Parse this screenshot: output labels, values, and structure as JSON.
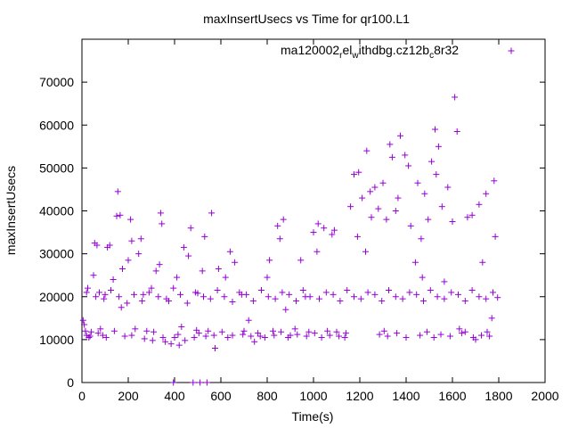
{
  "chart_data": {
    "type": "scatter",
    "title": "maxInsertUsecs vs Time for qr100.L1",
    "xlabel": "Time(s)",
    "ylabel": "maxInsertUsecs",
    "xlim": [
      0,
      2000
    ],
    "ylim": [
      0,
      80000
    ],
    "x_ticks": [
      0,
      200,
      400,
      600,
      800,
      1000,
      1200,
      1400,
      1600,
      1800,
      2000
    ],
    "y_ticks": [
      0,
      10000,
      20000,
      30000,
      40000,
      50000,
      60000,
      70000
    ],
    "grid": false,
    "legend_position": "top-right",
    "marker": "+",
    "series": [
      {
        "name": "ma120002_rel_withdbg.cz12b_c8r32",
        "legend_parts": {
          "a": "ma120002",
          "b": "r",
          "c": "el",
          "d": "w",
          "e": "ithdbg.cz12b",
          "f": "c",
          "g": "8r32"
        },
        "color": "#9400d3",
        "points": [
          [
            5,
            14500
          ],
          [
            10,
            13500
          ],
          [
            15,
            12000
          ],
          [
            20,
            11000
          ],
          [
            25,
            22000
          ],
          [
            30,
            10500
          ],
          [
            40,
            11800
          ],
          [
            50,
            25000
          ],
          [
            55,
            32500
          ],
          [
            65,
            32000
          ],
          [
            75,
            21000
          ],
          [
            80,
            12500
          ],
          [
            90,
            11000
          ],
          [
            100,
            20500
          ],
          [
            110,
            31500
          ],
          [
            120,
            32000
          ],
          [
            135,
            24000
          ],
          [
            150,
            38800
          ],
          [
            155,
            44500
          ],
          [
            165,
            39000
          ],
          [
            170,
            17500
          ],
          [
            175,
            26500
          ],
          [
            185,
            10800
          ],
          [
            200,
            28500
          ],
          [
            210,
            38000
          ],
          [
            215,
            33000
          ],
          [
            230,
            12500
          ],
          [
            245,
            30000
          ],
          [
            255,
            33500
          ],
          [
            265,
            20500
          ],
          [
            280,
            12000
          ],
          [
            300,
            22000
          ],
          [
            305,
            9800
          ],
          [
            320,
            26000
          ],
          [
            335,
            27500
          ],
          [
            340,
            39500
          ],
          [
            345,
            37000
          ],
          [
            360,
            9500
          ],
          [
            375,
            19000
          ],
          [
            385,
            9000
          ],
          [
            395,
            0
          ],
          [
            400,
            10500
          ],
          [
            410,
            24500
          ],
          [
            420,
            8700
          ],
          [
            430,
            13000
          ],
          [
            440,
            31500
          ],
          [
            460,
            29500
          ],
          [
            470,
            36000
          ],
          [
            480,
            0
          ],
          [
            485,
            10500
          ],
          [
            495,
            12200
          ],
          [
            500,
            20800
          ],
          [
            510,
            0
          ],
          [
            520,
            26000
          ],
          [
            530,
            34000
          ],
          [
            540,
            0
          ],
          [
            545,
            12000
          ],
          [
            560,
            39500
          ],
          [
            575,
            8000
          ],
          [
            590,
            26500
          ],
          [
            620,
            24500
          ],
          [
            640,
            30500
          ],
          [
            650,
            11000
          ],
          [
            660,
            28000
          ],
          [
            690,
            20500
          ],
          [
            700,
            12000
          ],
          [
            720,
            14500
          ],
          [
            745,
            9500
          ],
          [
            770,
            10800
          ],
          [
            800,
            24500
          ],
          [
            810,
            28500
          ],
          [
            825,
            12000
          ],
          [
            845,
            36500
          ],
          [
            855,
            33500
          ],
          [
            870,
            38000
          ],
          [
            880,
            17000
          ],
          [
            900,
            11000
          ],
          [
            920,
            12500
          ],
          [
            945,
            28500
          ],
          [
            965,
            20000
          ],
          [
            980,
            11800
          ],
          [
            1000,
            35000
          ],
          [
            1015,
            30500
          ],
          [
            1020,
            37000
          ],
          [
            1045,
            36000
          ],
          [
            1060,
            12000
          ],
          [
            1080,
            34500
          ],
          [
            1090,
            35500
          ],
          [
            1110,
            10800
          ],
          [
            1140,
            11500
          ],
          [
            1160,
            41000
          ],
          [
            1175,
            48500
          ],
          [
            1190,
            34000
          ],
          [
            1195,
            49000
          ],
          [
            1210,
            43000
          ],
          [
            1225,
            30500
          ],
          [
            1230,
            54000
          ],
          [
            1245,
            44500
          ],
          [
            1250,
            38500
          ],
          [
            1265,
            45500
          ],
          [
            1280,
            40500
          ],
          [
            1300,
            46500
          ],
          [
            1305,
            12000
          ],
          [
            1315,
            38000
          ],
          [
            1330,
            55500
          ],
          [
            1340,
            52500
          ],
          [
            1355,
            40000
          ],
          [
            1365,
            43000
          ],
          [
            1375,
            57500
          ],
          [
            1395,
            53000
          ],
          [
            1410,
            50500
          ],
          [
            1420,
            36500
          ],
          [
            1440,
            28000
          ],
          [
            1450,
            46500
          ],
          [
            1465,
            33500
          ],
          [
            1470,
            24500
          ],
          [
            1480,
            44000
          ],
          [
            1495,
            38000
          ],
          [
            1510,
            51500
          ],
          [
            1525,
            59000
          ],
          [
            1530,
            48500
          ],
          [
            1540,
            55000
          ],
          [
            1555,
            41000
          ],
          [
            1565,
            23500
          ],
          [
            1580,
            45500
          ],
          [
            1600,
            37500
          ],
          [
            1610,
            66500
          ],
          [
            1620,
            58500
          ],
          [
            1630,
            12500
          ],
          [
            1655,
            11800
          ],
          [
            1665,
            38500
          ],
          [
            1685,
            39000
          ],
          [
            1700,
            10000
          ],
          [
            1715,
            41500
          ],
          [
            1730,
            28000
          ],
          [
            1745,
            44000
          ],
          [
            1760,
            10800
          ],
          [
            1770,
            15000
          ],
          [
            1780,
            47000
          ],
          [
            1785,
            34000
          ],
          [
            1795,
            19800
          ],
          [
            20,
            21000
          ],
          [
            60,
            20000
          ],
          [
            95,
            19500
          ],
          [
            125,
            21500
          ],
          [
            160,
            20000
          ],
          [
            195,
            18500
          ],
          [
            225,
            20500
          ],
          [
            260,
            19000
          ],
          [
            290,
            21000
          ],
          [
            330,
            20000
          ],
          [
            365,
            19500
          ],
          [
            395,
            22000
          ],
          [
            425,
            20500
          ],
          [
            455,
            18500
          ],
          [
            490,
            21000
          ],
          [
            525,
            20000
          ],
          [
            555,
            19500
          ],
          [
            585,
            21500
          ],
          [
            615,
            20000
          ],
          [
            650,
            18800
          ],
          [
            680,
            21000
          ],
          [
            710,
            20500
          ],
          [
            740,
            19000
          ],
          [
            775,
            21500
          ],
          [
            805,
            20000
          ],
          [
            835,
            19500
          ],
          [
            865,
            21000
          ],
          [
            895,
            20500
          ],
          [
            925,
            19000
          ],
          [
            955,
            21500
          ],
          [
            985,
            20000
          ],
          [
            1025,
            19500
          ],
          [
            1055,
            21000
          ],
          [
            1085,
            20500
          ],
          [
            1115,
            19000
          ],
          [
            1145,
            21500
          ],
          [
            1175,
            20000
          ],
          [
            1205,
            19500
          ],
          [
            1235,
            21000
          ],
          [
            1265,
            20500
          ],
          [
            1295,
            19000
          ],
          [
            1325,
            21500
          ],
          [
            1355,
            20000
          ],
          [
            1385,
            19500
          ],
          [
            1415,
            21000
          ],
          [
            1445,
            20500
          ],
          [
            1475,
            19000
          ],
          [
            1505,
            21500
          ],
          [
            1535,
            20000
          ],
          [
            1565,
            19500
          ],
          [
            1595,
            21000
          ],
          [
            1625,
            20500
          ],
          [
            1655,
            19000
          ],
          [
            1685,
            21500
          ],
          [
            1715,
            20000
          ],
          [
            1745,
            19500
          ],
          [
            1775,
            21000
          ],
          [
            35,
            10800
          ],
          [
            70,
            11500
          ],
          [
            105,
            10500
          ],
          [
            140,
            12000
          ],
          [
            215,
            11000
          ],
          [
            270,
            10200
          ],
          [
            310,
            11800
          ],
          [
            350,
            10500
          ],
          [
            415,
            11200
          ],
          [
            445,
            9800
          ],
          [
            505,
            11500
          ],
          [
            535,
            10800
          ],
          [
            570,
            11000
          ],
          [
            605,
            11800
          ],
          [
            630,
            10500
          ],
          [
            695,
            11200
          ],
          [
            730,
            10800
          ],
          [
            760,
            11500
          ],
          [
            790,
            10500
          ],
          [
            830,
            11000
          ],
          [
            860,
            11800
          ],
          [
            890,
            10500
          ],
          [
            930,
            11200
          ],
          [
            970,
            10800
          ],
          [
            1005,
            11500
          ],
          [
            1035,
            10500
          ],
          [
            1070,
            11000
          ],
          [
            1100,
            11800
          ],
          [
            1135,
            10500
          ],
          [
            1285,
            11200
          ],
          [
            1320,
            10800
          ],
          [
            1360,
            11500
          ],
          [
            1400,
            10500
          ],
          [
            1460,
            11000
          ],
          [
            1490,
            11800
          ],
          [
            1520,
            10500
          ],
          [
            1550,
            11200
          ],
          [
            1590,
            10800
          ],
          [
            1640,
            11500
          ],
          [
            1690,
            10500
          ],
          [
            1725,
            11000
          ],
          [
            1750,
            11800
          ]
        ]
      }
    ]
  }
}
